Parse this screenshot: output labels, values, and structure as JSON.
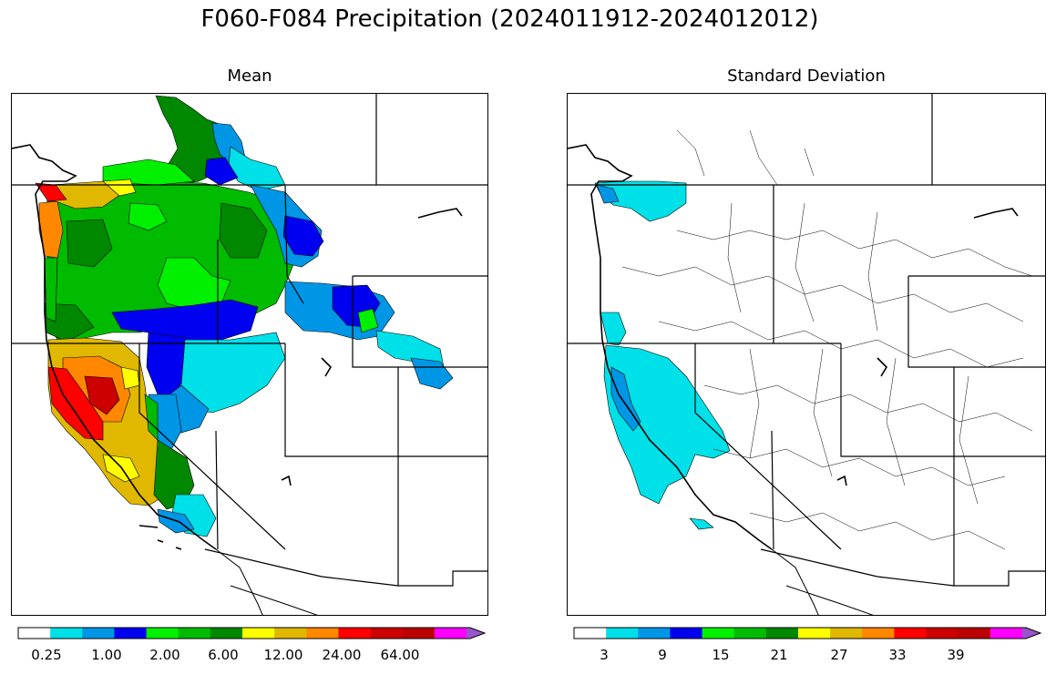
{
  "figure": {
    "title": "F060-F084 Precipitation (2024011912-2024012012)"
  },
  "panels": [
    {
      "id": "mean",
      "title": "Mean",
      "colorbar": {
        "colors": [
          "#ffffff",
          "#00e0e8",
          "#0096e6",
          "#0000f0",
          "#00f000",
          "#00bb00",
          "#008800",
          "#ffff00",
          "#e0b800",
          "#ff8800",
          "#ff0000",
          "#cc0000",
          "#bb0000",
          "#ff00ff",
          "#9955cc"
        ],
        "ticks": [
          "0.25",
          "1.00",
          "2.00",
          "6.00",
          "12.00",
          "24.00",
          "64.00"
        ],
        "extend": "max"
      }
    },
    {
      "id": "stddev",
      "title": "Standard Deviation",
      "colorbar": {
        "colors": [
          "#ffffff",
          "#00e0e8",
          "#0096e6",
          "#0000f0",
          "#00f000",
          "#00bb00",
          "#008800",
          "#ffff00",
          "#e0b800",
          "#ff8800",
          "#ff0000",
          "#cc0000",
          "#bb0000",
          "#ff00ff",
          "#9955cc"
        ],
        "ticks": [
          "3",
          "9",
          "15",
          "21",
          "27",
          "33",
          "39"
        ],
        "extend": "max"
      }
    }
  ]
}
